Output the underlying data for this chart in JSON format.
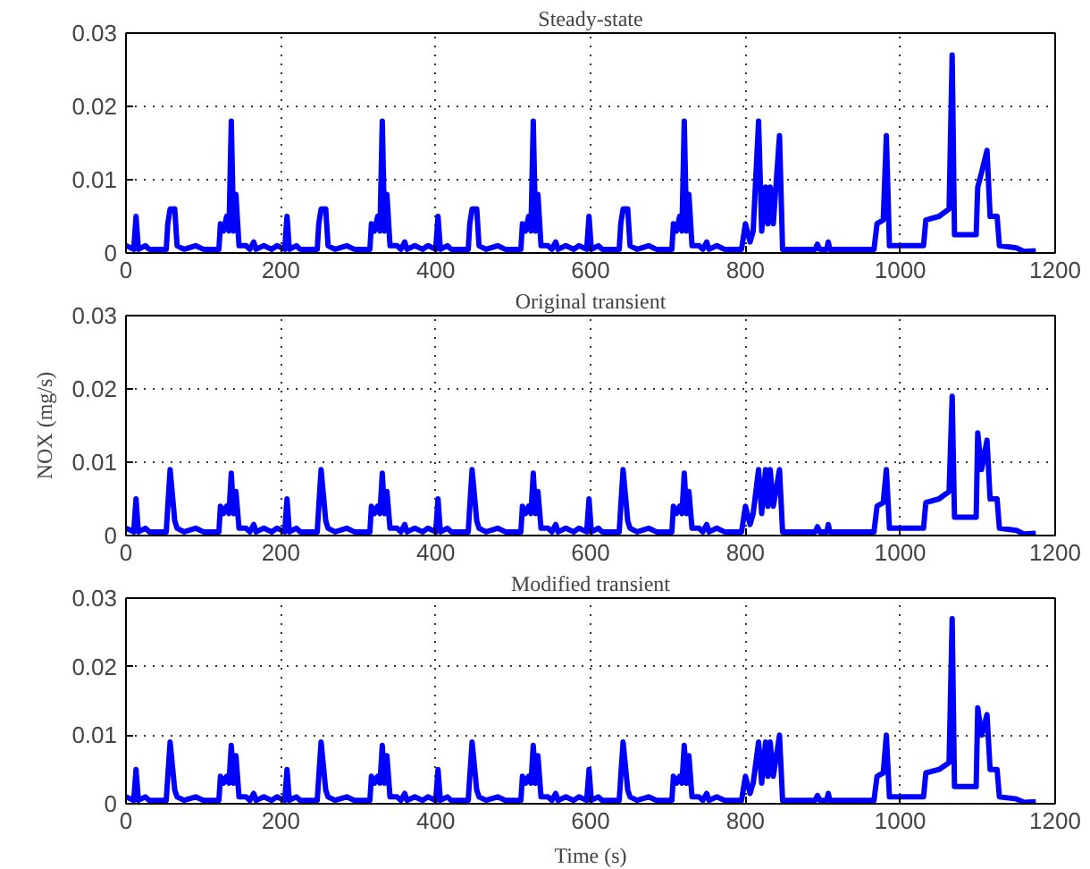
{
  "chart_data": [
    {
      "type": "line",
      "title": "Steady-state",
      "xlim": [
        0,
        1200
      ],
      "ylim": [
        0,
        0.03
      ],
      "xticks": [
        0,
        200,
        400,
        600,
        800,
        1000,
        1200
      ],
      "yticks": [
        0,
        0.01,
        0.02,
        0.03
      ],
      "grid": true,
      "x": [
        0,
        10,
        13,
        16,
        25,
        30,
        52,
        54,
        57,
        63,
        66,
        75,
        90,
        100,
        120,
        122,
        126,
        130,
        133,
        136,
        139,
        142,
        146,
        155,
        160,
        165,
        168,
        178,
        188,
        195,
        205,
        208,
        211,
        220,
        225,
        247,
        249,
        252,
        258,
        261,
        270,
        285,
        295,
        315,
        317,
        321,
        325,
        328,
        331,
        334,
        337,
        341,
        350,
        355,
        360,
        363,
        373,
        383,
        390,
        400,
        403,
        406,
        415,
        420,
        442,
        444,
        447,
        453,
        456,
        465,
        480,
        490,
        510,
        512,
        516,
        520,
        523,
        526,
        529,
        532,
        536,
        545,
        550,
        555,
        558,
        568,
        578,
        585,
        595,
        598,
        601,
        610,
        615,
        637,
        639,
        642,
        648,
        651,
        660,
        675,
        685,
        705,
        707,
        711,
        715,
        718,
        721,
        724,
        727,
        731,
        740,
        745,
        750,
        753,
        763,
        773,
        795,
        800,
        806,
        810,
        817,
        821,
        826,
        829,
        832,
        836,
        844,
        848,
        890,
        893,
        896,
        905,
        907,
        909,
        966,
        970,
        978,
        982,
        986,
        1030,
        1033,
        1050,
        1063,
        1067,
        1070,
        1098,
        1100,
        1105,
        1112,
        1116,
        1125,
        1128,
        1150,
        1160,
        1175
      ],
      "series": [
        {
          "color": "#0000ff",
          "values": [
            0.001,
            0.0005,
            0.005,
            0.0005,
            0.001,
            0.0005,
            0.0005,
            0.004,
            0.006,
            0.006,
            0.001,
            0.0005,
            0.001,
            0.0005,
            0.0005,
            0.004,
            0.003,
            0.005,
            0.003,
            0.018,
            0.003,
            0.008,
            0.001,
            0.001,
            0.0005,
            0.0015,
            0.0005,
            0.001,
            0.0005,
            0.001,
            0.0005,
            0.005,
            0.0005,
            0.001,
            0.0005,
            0.0005,
            0.004,
            0.006,
            0.006,
            0.001,
            0.0005,
            0.001,
            0.0005,
            0.0005,
            0.004,
            0.003,
            0.005,
            0.003,
            0.018,
            0.003,
            0.008,
            0.001,
            0.001,
            0.0005,
            0.0015,
            0.0005,
            0.001,
            0.0005,
            0.001,
            0.0005,
            0.005,
            0.0005,
            0.001,
            0.0005,
            0.0005,
            0.004,
            0.006,
            0.006,
            0.001,
            0.0005,
            0.001,
            0.0005,
            0.0005,
            0.004,
            0.003,
            0.005,
            0.003,
            0.018,
            0.003,
            0.008,
            0.001,
            0.001,
            0.0005,
            0.0015,
            0.0005,
            0.001,
            0.0005,
            0.001,
            0.0005,
            0.005,
            0.0005,
            0.001,
            0.0005,
            0.0005,
            0.004,
            0.006,
            0.006,
            0.001,
            0.0005,
            0.001,
            0.0005,
            0.0005,
            0.004,
            0.003,
            0.005,
            0.003,
            0.018,
            0.003,
            0.008,
            0.001,
            0.001,
            0.0005,
            0.0015,
            0.0005,
            0.001,
            0.0005,
            0.0005,
            0.004,
            0.0015,
            0.003,
            0.018,
            0.003,
            0.009,
            0.004,
            0.009,
            0.004,
            0.016,
            0.0005,
            0.0005,
            0.0012,
            0.0005,
            0.0005,
            0.0015,
            0.0005,
            0.0005,
            0.004,
            0.0045,
            0.016,
            0.001,
            0.001,
            0.0045,
            0.005,
            0.006,
            0.027,
            0.0025,
            0.0025,
            0.009,
            0.011,
            0.014,
            0.005,
            0.005,
            0.001,
            0.0007,
            0.0002,
            0.0003
          ]
        }
      ]
    },
    {
      "type": "line",
      "title": "Original transient",
      "ylabel": "NOX (mg/s)",
      "xlim": [
        0,
        1200
      ],
      "ylim": [
        0,
        0.03
      ],
      "xticks": [
        0,
        200,
        400,
        600,
        800,
        1000,
        1200
      ],
      "yticks": [
        0,
        0.01,
        0.02,
        0.03
      ],
      "grid": true,
      "x": [
        0,
        10,
        13,
        16,
        25,
        30,
        52,
        54,
        57,
        63,
        66,
        75,
        90,
        100,
        120,
        122,
        126,
        130,
        133,
        136,
        139,
        142,
        146,
        155,
        160,
        165,
        168,
        178,
        188,
        195,
        205,
        208,
        211,
        220,
        225,
        247,
        249,
        252,
        258,
        261,
        270,
        285,
        295,
        315,
        317,
        321,
        325,
        328,
        331,
        334,
        337,
        341,
        350,
        355,
        360,
        363,
        373,
        383,
        390,
        400,
        403,
        406,
        415,
        420,
        442,
        444,
        447,
        453,
        456,
        465,
        480,
        490,
        510,
        512,
        516,
        520,
        523,
        526,
        529,
        532,
        536,
        545,
        550,
        555,
        558,
        568,
        578,
        585,
        595,
        598,
        601,
        610,
        615,
        637,
        639,
        642,
        648,
        651,
        660,
        675,
        685,
        705,
        707,
        711,
        715,
        718,
        721,
        724,
        727,
        731,
        740,
        745,
        750,
        753,
        763,
        773,
        795,
        800,
        806,
        810,
        817,
        821,
        826,
        829,
        832,
        836,
        844,
        848,
        890,
        893,
        896,
        905,
        907,
        909,
        966,
        970,
        978,
        982,
        986,
        1030,
        1033,
        1050,
        1063,
        1067,
        1070,
        1098,
        1100,
        1105,
        1112,
        1116,
        1125,
        1128,
        1150,
        1160,
        1175
      ],
      "series": [
        {
          "color": "#0000ff",
          "values": [
            0.001,
            0.0005,
            0.005,
            0.0005,
            0.001,
            0.0005,
            0.0005,
            0.004,
            0.009,
            0.002,
            0.001,
            0.0005,
            0.001,
            0.0005,
            0.0005,
            0.004,
            0.003,
            0.004,
            0.003,
            0.0085,
            0.003,
            0.006,
            0.001,
            0.001,
            0.0005,
            0.0015,
            0.0005,
            0.001,
            0.0005,
            0.001,
            0.0005,
            0.005,
            0.0005,
            0.001,
            0.0005,
            0.0005,
            0.004,
            0.009,
            0.002,
            0.001,
            0.0005,
            0.001,
            0.0005,
            0.0005,
            0.004,
            0.003,
            0.004,
            0.003,
            0.0085,
            0.003,
            0.006,
            0.001,
            0.001,
            0.0005,
            0.0015,
            0.0005,
            0.001,
            0.0005,
            0.001,
            0.0005,
            0.005,
            0.0005,
            0.001,
            0.0005,
            0.0005,
            0.004,
            0.009,
            0.002,
            0.001,
            0.0005,
            0.001,
            0.0005,
            0.0005,
            0.004,
            0.003,
            0.004,
            0.003,
            0.0085,
            0.003,
            0.006,
            0.001,
            0.001,
            0.0005,
            0.0015,
            0.0005,
            0.001,
            0.0005,
            0.001,
            0.0005,
            0.005,
            0.0005,
            0.001,
            0.0005,
            0.0005,
            0.004,
            0.009,
            0.002,
            0.001,
            0.0005,
            0.001,
            0.0005,
            0.0005,
            0.004,
            0.003,
            0.004,
            0.003,
            0.0085,
            0.003,
            0.006,
            0.001,
            0.001,
            0.0005,
            0.0015,
            0.0005,
            0.001,
            0.0005,
            0.0005,
            0.004,
            0.0015,
            0.003,
            0.009,
            0.003,
            0.009,
            0.004,
            0.009,
            0.004,
            0.009,
            0.0005,
            0.0005,
            0.0012,
            0.0005,
            0.0005,
            0.0015,
            0.0005,
            0.0005,
            0.004,
            0.0045,
            0.009,
            0.001,
            0.001,
            0.0045,
            0.005,
            0.006,
            0.019,
            0.0025,
            0.0025,
            0.014,
            0.009,
            0.013,
            0.005,
            0.005,
            0.001,
            0.0007,
            0.0002,
            0.0003
          ]
        }
      ]
    },
    {
      "type": "line",
      "title": "Modified transient",
      "xlabel": "Time (s)",
      "xlim": [
        0,
        1200
      ],
      "ylim": [
        0,
        0.03
      ],
      "xticks": [
        0,
        200,
        400,
        600,
        800,
        1000,
        1200
      ],
      "yticks": [
        0,
        0.01,
        0.02,
        0.03
      ],
      "grid": true,
      "x": [
        0,
        10,
        13,
        16,
        25,
        30,
        52,
        54,
        57,
        63,
        66,
        75,
        90,
        100,
        120,
        122,
        126,
        130,
        133,
        136,
        139,
        142,
        146,
        155,
        160,
        165,
        168,
        178,
        188,
        195,
        205,
        208,
        211,
        220,
        225,
        247,
        249,
        252,
        258,
        261,
        270,
        285,
        295,
        315,
        317,
        321,
        325,
        328,
        331,
        334,
        337,
        341,
        350,
        355,
        360,
        363,
        373,
        383,
        390,
        400,
        403,
        406,
        415,
        420,
        442,
        444,
        447,
        453,
        456,
        465,
        480,
        490,
        510,
        512,
        516,
        520,
        523,
        526,
        529,
        532,
        536,
        545,
        550,
        555,
        558,
        568,
        578,
        585,
        595,
        598,
        601,
        610,
        615,
        637,
        639,
        642,
        648,
        651,
        660,
        675,
        685,
        705,
        707,
        711,
        715,
        718,
        721,
        724,
        727,
        731,
        740,
        745,
        750,
        753,
        763,
        773,
        795,
        800,
        806,
        810,
        817,
        821,
        826,
        829,
        832,
        836,
        844,
        848,
        890,
        893,
        896,
        905,
        907,
        909,
        966,
        970,
        978,
        982,
        986,
        1030,
        1033,
        1050,
        1063,
        1067,
        1070,
        1098,
        1100,
        1105,
        1112,
        1116,
        1125,
        1128,
        1150,
        1160,
        1175
      ],
      "series": [
        {
          "color": "#0000ff",
          "values": [
            0.001,
            0.0005,
            0.005,
            0.0005,
            0.001,
            0.0005,
            0.0005,
            0.004,
            0.009,
            0.002,
            0.001,
            0.0005,
            0.001,
            0.0005,
            0.0005,
            0.004,
            0.003,
            0.004,
            0.003,
            0.0085,
            0.003,
            0.007,
            0.001,
            0.001,
            0.0005,
            0.0015,
            0.0005,
            0.001,
            0.0005,
            0.001,
            0.0005,
            0.005,
            0.0005,
            0.001,
            0.0005,
            0.0005,
            0.004,
            0.009,
            0.002,
            0.001,
            0.0005,
            0.001,
            0.0005,
            0.0005,
            0.004,
            0.003,
            0.004,
            0.003,
            0.0085,
            0.003,
            0.007,
            0.001,
            0.001,
            0.0005,
            0.0015,
            0.0005,
            0.001,
            0.0005,
            0.001,
            0.0005,
            0.005,
            0.0005,
            0.001,
            0.0005,
            0.0005,
            0.004,
            0.009,
            0.002,
            0.001,
            0.0005,
            0.001,
            0.0005,
            0.0005,
            0.004,
            0.003,
            0.004,
            0.003,
            0.0085,
            0.003,
            0.007,
            0.001,
            0.001,
            0.0005,
            0.0015,
            0.0005,
            0.001,
            0.0005,
            0.001,
            0.0005,
            0.005,
            0.0005,
            0.001,
            0.0005,
            0.0005,
            0.004,
            0.009,
            0.002,
            0.001,
            0.0005,
            0.001,
            0.0005,
            0.0005,
            0.004,
            0.003,
            0.004,
            0.003,
            0.0085,
            0.003,
            0.007,
            0.001,
            0.001,
            0.0005,
            0.0015,
            0.0005,
            0.001,
            0.0005,
            0.0005,
            0.004,
            0.0015,
            0.003,
            0.009,
            0.003,
            0.009,
            0.004,
            0.009,
            0.004,
            0.01,
            0.0005,
            0.0005,
            0.0012,
            0.0005,
            0.0005,
            0.0015,
            0.0005,
            0.0005,
            0.004,
            0.0045,
            0.01,
            0.001,
            0.001,
            0.0045,
            0.005,
            0.006,
            0.027,
            0.0025,
            0.0025,
            0.014,
            0.01,
            0.013,
            0.005,
            0.005,
            0.001,
            0.0007,
            0.0002,
            0.0003
          ]
        }
      ]
    }
  ]
}
